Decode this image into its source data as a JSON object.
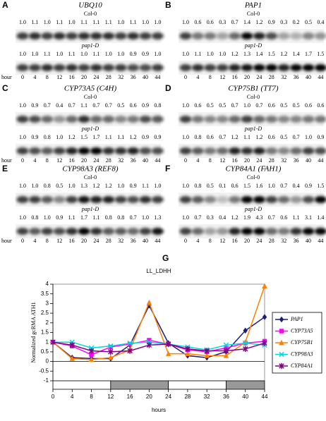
{
  "hour_label": "hour",
  "hours": [
    0,
    4,
    8,
    12,
    16,
    20,
    24,
    28,
    32,
    36,
    40,
    44
  ],
  "panels": [
    {
      "letter": "A",
      "gene": "UBQ10",
      "rows": [
        {
          "label": "Col-0",
          "values": [
            "1.0",
            "1.1",
            "1.0",
            "1.1",
            "1.0",
            "1.1",
            "1.1",
            "1.1",
            "1.0",
            "1.1",
            "1.0",
            "1.0"
          ]
        },
        {
          "label": "pap1-D",
          "values": [
            "1.0",
            "1.0",
            "1.1",
            "1.0",
            "1.1",
            "1.0",
            "1.1",
            "1.0",
            "1.0",
            "0.9",
            "0.9",
            "1.0"
          ]
        }
      ]
    },
    {
      "letter": "B",
      "gene": "PAP1",
      "rows": [
        {
          "label": "Col-0",
          "values": [
            "1.0",
            "0.6",
            "0.6",
            "0.3",
            "0.7",
            "1.4",
            "1.2",
            "0.9",
            "0.3",
            "0.2",
            "0.5",
            "0.4"
          ]
        },
        {
          "label": "pap1-D",
          "values": [
            "1.0",
            "1.1",
            "1.0",
            "1.0",
            "1.2",
            "1.3",
            "1.4",
            "1.5",
            "1.2",
            "1.4",
            "1.7",
            "1.5"
          ]
        }
      ]
    },
    {
      "letter": "C",
      "gene": "CYP73A5 (C4H)",
      "rows": [
        {
          "label": "Col-0",
          "values": [
            "1.0",
            "0.9",
            "0.7",
            "0.4",
            "0.7",
            "1.1",
            "0.7",
            "0.7",
            "0.5",
            "0.6",
            "0.9",
            "0.8"
          ]
        },
        {
          "label": "pap1-D",
          "values": [
            "1.0",
            "0.9",
            "0.8",
            "1.0",
            "1.2",
            "1.5",
            "1.7",
            "1.1",
            "1.1",
            "1.2",
            "0.9",
            "0.9"
          ]
        }
      ]
    },
    {
      "letter": "D",
      "gene": "CYP75B1 (TT7)",
      "rows": [
        {
          "label": "Col-0",
          "values": [
            "1.0",
            "0.6",
            "0.5",
            "0.5",
            "0.7",
            "1.0",
            "0.7",
            "0.6",
            "0.5",
            "0.5",
            "0.6",
            "0.6"
          ]
        },
        {
          "label": "pap1-D",
          "values": [
            "1.0",
            "0.8",
            "0.6",
            "0.7",
            "1.2",
            "1.1",
            "1.2",
            "0.6",
            "0.5",
            "0.7",
            "1.0",
            "0.9"
          ]
        }
      ]
    },
    {
      "letter": "E",
      "gene": "CYP98A3 (REF8)",
      "rows": [
        {
          "label": "Col-0",
          "values": [
            "1.0",
            "1.0",
            "0.8",
            "0.5",
            "1.0",
            "1.3",
            "1.2",
            "1.2",
            "1.0",
            "0.9",
            "1.1",
            "1.0"
          ]
        },
        {
          "label": "pap1-D",
          "values": [
            "1.0",
            "0.8",
            "1.0",
            "0.9",
            "1.1",
            "1.7",
            "1.1",
            "0.8",
            "0.8",
            "0.7",
            "1.0",
            "1.3"
          ]
        }
      ]
    },
    {
      "letter": "F",
      "gene": "CYP84A1 (FAH1)",
      "rows": [
        {
          "label": "Col-0",
          "values": [
            "1.0",
            "0.8",
            "0.5",
            "0.1",
            "0.6",
            "1.5",
            "1.6",
            "1.0",
            "0.7",
            "0.4",
            "0.9",
            "1.5"
          ]
        },
        {
          "label": "pap1-D",
          "values": [
            "1.0",
            "0.7",
            "0.3",
            "0.4",
            "1.2",
            "1.9",
            "4.3",
            "0.7",
            "0.6",
            "1.1",
            "3.1",
            "1.4"
          ]
        }
      ]
    }
  ],
  "chart_data": {
    "type": "line",
    "letter": "G",
    "title": "LL_LDHH",
    "x_label": "hours",
    "y_label": "Normalized gcRMA ATH1",
    "x": [
      0,
      4,
      8,
      12,
      16,
      20,
      24,
      28,
      32,
      36,
      40,
      44
    ],
    "xlim": [
      0,
      44
    ],
    "xticks": [
      0,
      4,
      8,
      12,
      16,
      20,
      24,
      28,
      32,
      36,
      40,
      44
    ],
    "ylim": [
      -1,
      4
    ],
    "yticks": [
      -1,
      -0.5,
      0,
      0.5,
      1,
      1.5,
      2,
      2.5,
      3,
      3.5,
      4
    ],
    "periods": [
      {
        "start": 0,
        "end": 12,
        "color": "#ffffff"
      },
      {
        "start": 12,
        "end": 24,
        "color": "#999999"
      },
      {
        "start": 24,
        "end": 36,
        "color": "#ffffff"
      },
      {
        "start": 36,
        "end": 44,
        "color": "#999999"
      }
    ],
    "series": [
      {
        "name": "PAP1",
        "color": "#1a1a80",
        "marker": "diamond",
        "values": [
          1.0,
          0.2,
          0.15,
          0.15,
          0.85,
          2.9,
          0.95,
          0.3,
          0.2,
          0.5,
          1.6,
          2.3
        ]
      },
      {
        "name": "CYP73A5",
        "color": "#ff00ff",
        "marker": "square",
        "values": [
          1.0,
          0.8,
          0.35,
          0.75,
          0.9,
          1.1,
          0.9,
          0.6,
          0.5,
          0.7,
          0.95,
          1.05
        ]
      },
      {
        "name": "CYP75B1",
        "color": "#ff8000",
        "marker": "triangle",
        "values": [
          1.0,
          0.15,
          0.1,
          0.2,
          0.6,
          3.05,
          0.4,
          0.4,
          0.3,
          0.3,
          1.0,
          3.9
        ]
      },
      {
        "name": "CYP98A3",
        "color": "#00d8e0",
        "marker": "x",
        "values": [
          1.0,
          1.0,
          0.7,
          0.8,
          0.95,
          1.0,
          0.9,
          0.75,
          0.6,
          0.85,
          0.95,
          0.85
        ]
      },
      {
        "name": "CYP84A1",
        "color": "#800080",
        "marker": "star",
        "values": [
          1.0,
          0.85,
          0.55,
          0.5,
          0.55,
          0.85,
          0.9,
          0.65,
          0.55,
          0.55,
          0.65,
          0.95
        ]
      }
    ]
  }
}
